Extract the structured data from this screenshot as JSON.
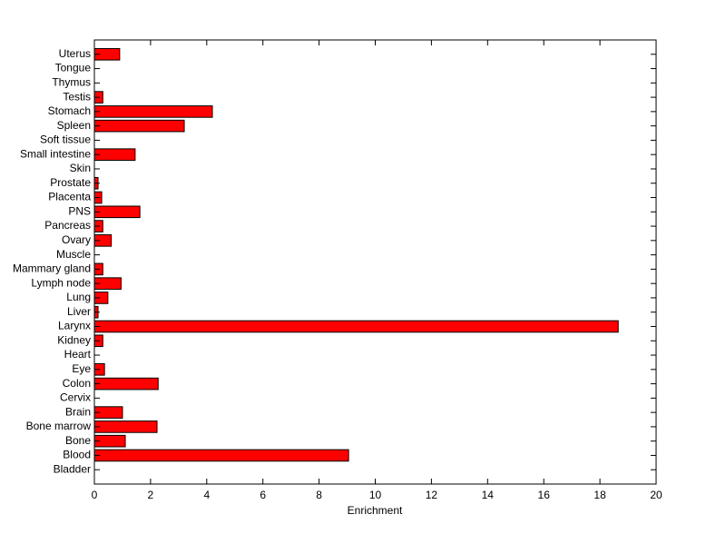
{
  "chart_data": {
    "type": "barh",
    "x_label": "Enrichment",
    "categories": [
      "Bladder",
      "Blood",
      "Bone",
      "Bone marrow",
      "Brain",
      "Cervix",
      "Colon",
      "Eye",
      "Heart",
      "Kidney",
      "Larynx",
      "Liver",
      "Lung",
      "Lymph node",
      "Mammary gland",
      "Muscle",
      "Ovary",
      "Pancreas",
      "PNS",
      "Placenta",
      "Prostate",
      "Skin",
      "Small intestine",
      "Soft tissue",
      "Spleen",
      "Stomach",
      "Testis",
      "Thymus",
      "Tongue",
      "Uterus"
    ],
    "values": [
      0,
      9.05,
      1.1,
      2.23,
      1.0,
      0,
      2.27,
      0.36,
      0,
      0.3,
      18.65,
      0.13,
      0.48,
      0.95,
      0.3,
      0,
      0.6,
      0.3,
      1.62,
      0.26,
      0.13,
      0,
      1.45,
      0,
      3.2,
      4.2,
      0.3,
      0,
      0,
      0.9
    ],
    "color": "#ff0000",
    "xlim": [
      0,
      20
    ],
    "xticks": [
      0,
      2,
      4,
      6,
      8,
      10,
      12,
      14,
      16,
      18,
      20
    ]
  }
}
